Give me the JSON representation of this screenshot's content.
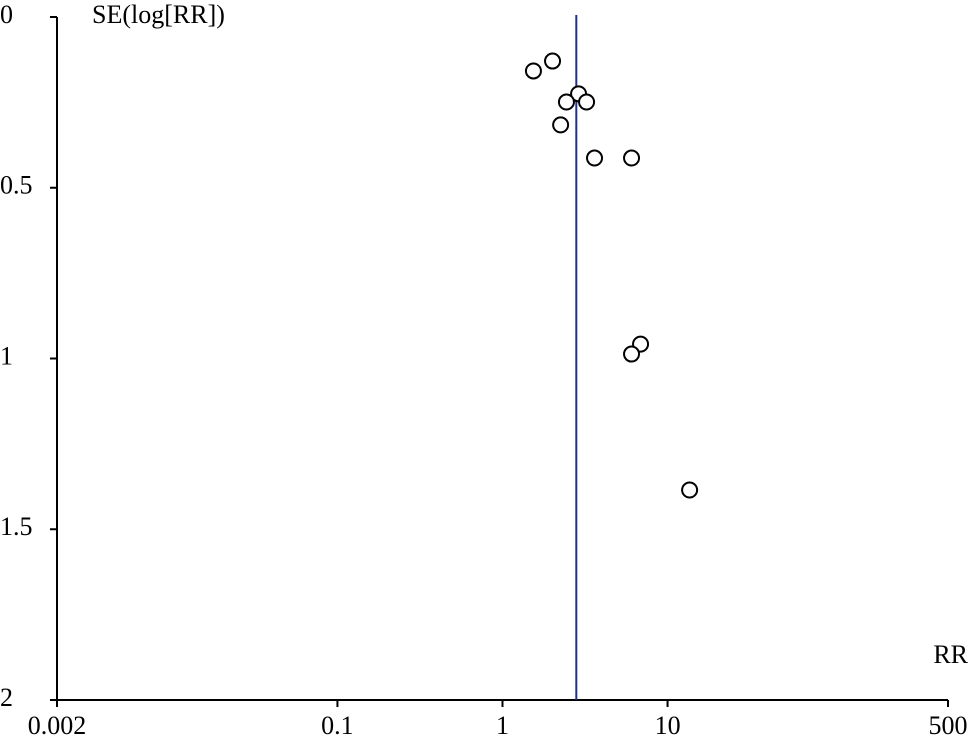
{
  "chart_data": {
    "type": "scatter",
    "ylabel": "SE(log[RR])",
    "xlabel": "RR",
    "x": [
      1.54,
      2.01,
      2.89,
      2.44,
      3.23,
      2.25,
      3.61,
      6.05,
      6.86,
      6.05,
      13.6
    ],
    "y": [
      0.158,
      0.129,
      0.225,
      0.249,
      0.249,
      0.316,
      0.413,
      0.413,
      0.958,
      0.987,
      1.385
    ],
    "color": "#000000",
    "reference_line": 2.8,
    "reference_color": "#1f2f8f",
    "xscale": "log",
    "xlim": [
      0.002,
      500
    ],
    "xticks": [
      0.002,
      0.1,
      1,
      10,
      500
    ],
    "ylim": [
      0,
      2
    ],
    "y_inverted": true,
    "yticks": [
      0,
      0.5,
      1,
      1.5,
      2
    ]
  }
}
